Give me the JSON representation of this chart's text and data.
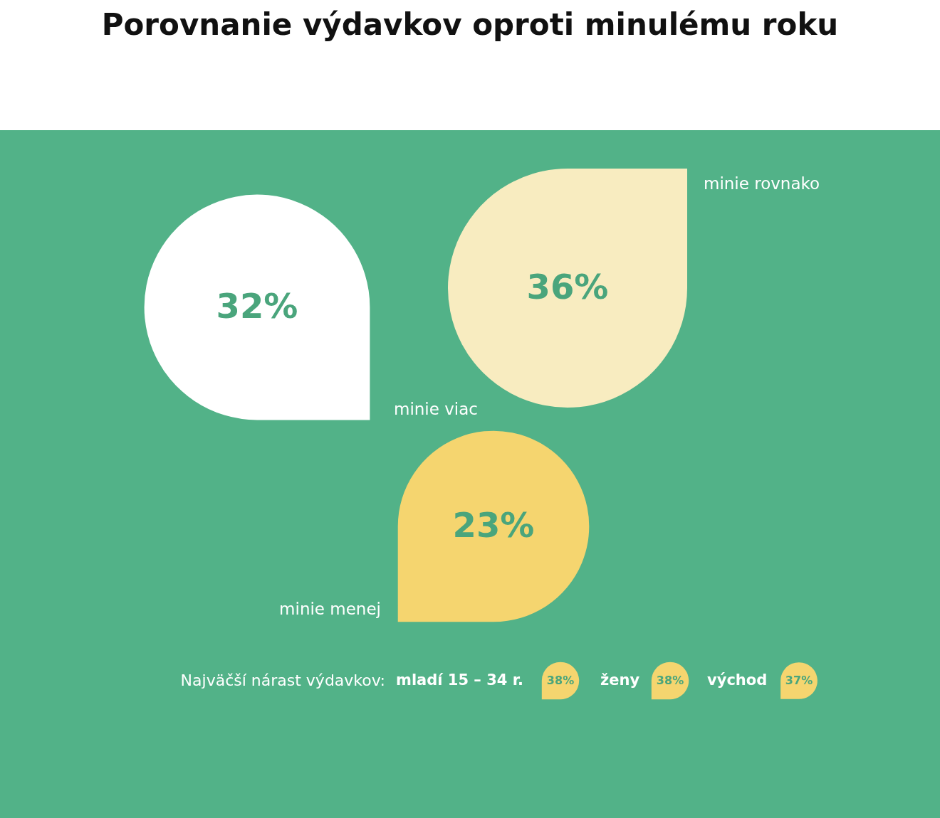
{
  "chart_data": [
    {
      "type": "other",
      "title": "Porovnanie výdavkov oproti minulému roku",
      "categories": [
        "minie viac",
        "minie rovnako",
        "minie menej"
      ],
      "values": [
        32,
        36,
        23
      ],
      "value_labels": [
        "32%",
        "36%",
        "23%"
      ],
      "colors": [
        "#ffffff",
        "#f8ecc0",
        "#f5d56f"
      ]
    },
    {
      "type": "other",
      "title": "Najväčší nárast výdavkov:",
      "categories": [
        "mladí 15 – 34 r.",
        "ženy",
        "východ"
      ],
      "values": [
        38,
        38,
        37
      ],
      "value_labels": [
        "38%",
        "38%",
        "37%"
      ],
      "colors": [
        "#f5d56f",
        "#f5d56f",
        "#f5d56f"
      ]
    }
  ]
}
